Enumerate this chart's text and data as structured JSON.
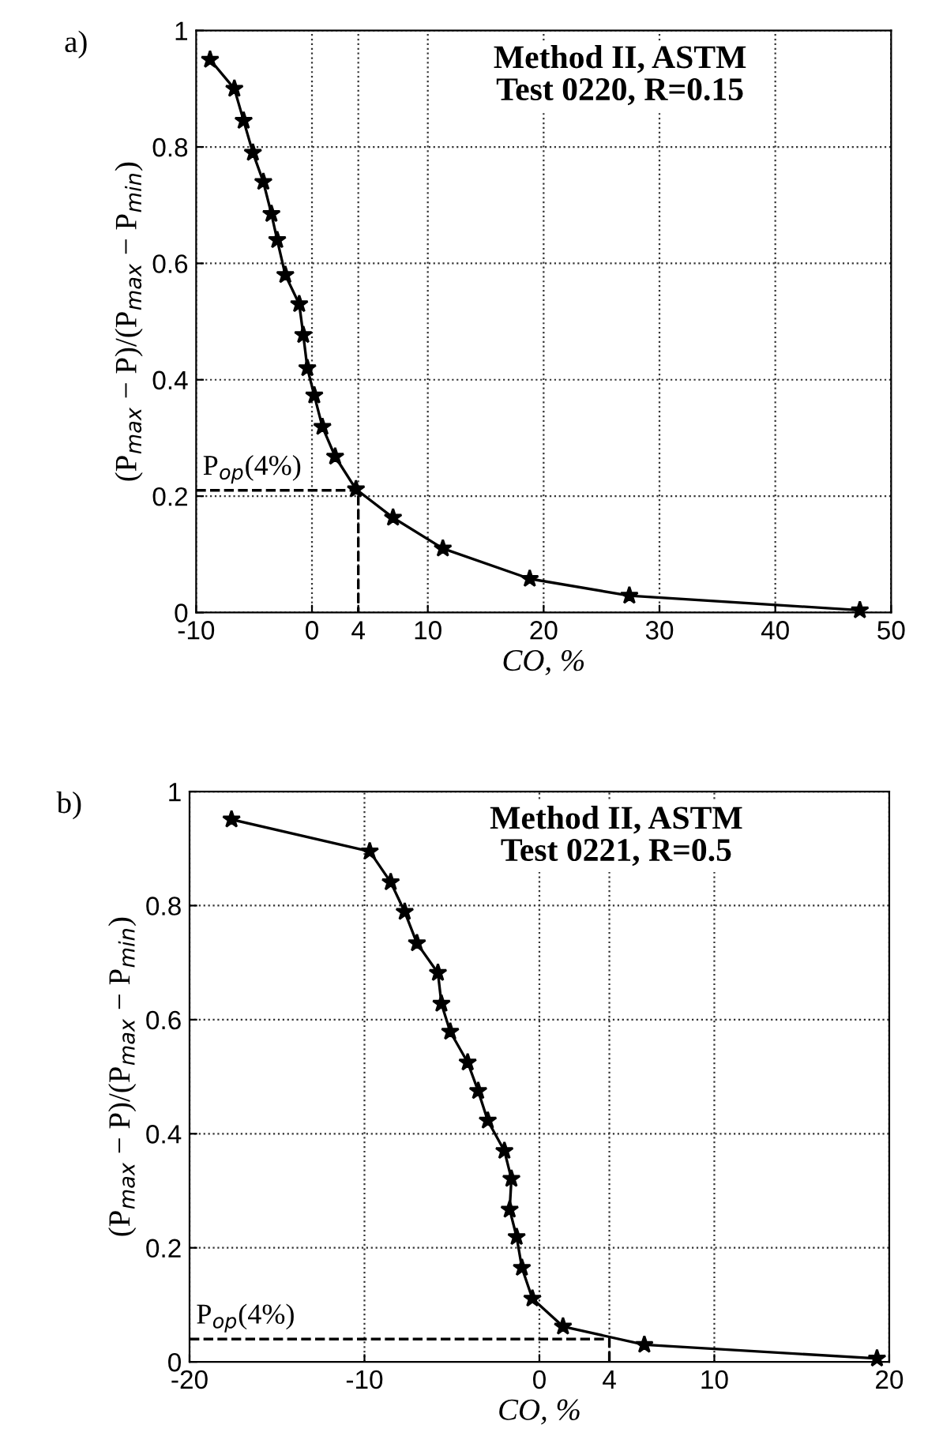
{
  "chart_data": [
    {
      "type": "line",
      "title": "Method II, ASTM\nTest 0220, R=0.15",
      "xlabel": "CO, %",
      "ylabel": "(P$_{max}$ − P)/(P$_{max}$ − P$_{min}$)",
      "annotations": [
        "a)",
        {
          "text": "P$_{op}$(4%)",
          "x": -10,
          "y": 0.21
        }
      ],
      "x": [
        -8.8,
        -6.7,
        -5.9,
        -5.1,
        -4.2,
        -3.5,
        -3.0,
        -2.3,
        -1.1,
        -0.75,
        -0.4,
        0.2,
        0.9,
        2.0,
        3.8,
        7.0,
        11.3,
        18.8,
        27.4,
        47.3
      ],
      "series": [
        {
          "color": "#000000",
          "values": [
            0.95,
            0.9,
            0.845,
            0.79,
            0.74,
            0.685,
            0.64,
            0.58,
            0.53,
            0.477,
            0.42,
            0.373,
            0.319,
            0.268,
            0.212,
            0.163,
            0.11,
            0.058,
            0.029,
            0.004
          ]
        },
        {
          "color": "#000000",
          "x": [
            -10,
            4,
            4
          ],
          "values": [
            0.21,
            0.21,
            0
          ],
          "line_style": "dashed",
          "marker": "none"
        }
      ],
      "xlim": [
        -10,
        50
      ],
      "xticks": [
        -10,
        0,
        4,
        10,
        20,
        30,
        40,
        50
      ],
      "ylim": [
        0,
        1
      ],
      "yticks": [
        0,
        0.2,
        0.4,
        0.6,
        0.8,
        1
      ],
      "grid": true,
      "marker": "star",
      "line_style": "solid"
    },
    {
      "type": "line",
      "title": "Method II, ASTM\nTest 0221, R=0.5",
      "xlabel": "CO, %",
      "ylabel": "(P$_{max}$ − P)/(P$_{max}$ − P$_{min}$)",
      "annotations": [
        "b)",
        {
          "text": "P$_{op}$(4%)",
          "x": -20,
          "y": 0.04
        }
      ],
      "x": [
        -17.6,
        -9.7,
        -8.5,
        -7.7,
        -7.0,
        -5.8,
        -5.6,
        -5.1,
        -4.1,
        -3.5,
        -2.95,
        -2.0,
        -1.6,
        -1.7,
        -1.3,
        -1.0,
        -0.4,
        1.35,
        6.0,
        19.3
      ],
      "series": [
        {
          "color": "#000000",
          "values": [
            0.951,
            0.895,
            0.841,
            0.789,
            0.734,
            0.682,
            0.628,
            0.579,
            0.525,
            0.475,
            0.423,
            0.37,
            0.321,
            0.267,
            0.219,
            0.165,
            0.111,
            0.062,
            0.03,
            0.006
          ]
        },
        {
          "color": "#000000",
          "x": [
            -20,
            4,
            4
          ],
          "values": [
            0.04,
            0.04,
            0
          ],
          "line_style": "dashed",
          "marker": "none"
        }
      ],
      "xlim": [
        -20,
        20
      ],
      "xticks": [
        -20,
        -10,
        0,
        4,
        10,
        20
      ],
      "ylim": [
        0,
        1
      ],
      "yticks": [
        0,
        0.2,
        0.4,
        0.6,
        0.8,
        1
      ],
      "grid": true,
      "marker": "star",
      "line_style": "solid"
    }
  ]
}
